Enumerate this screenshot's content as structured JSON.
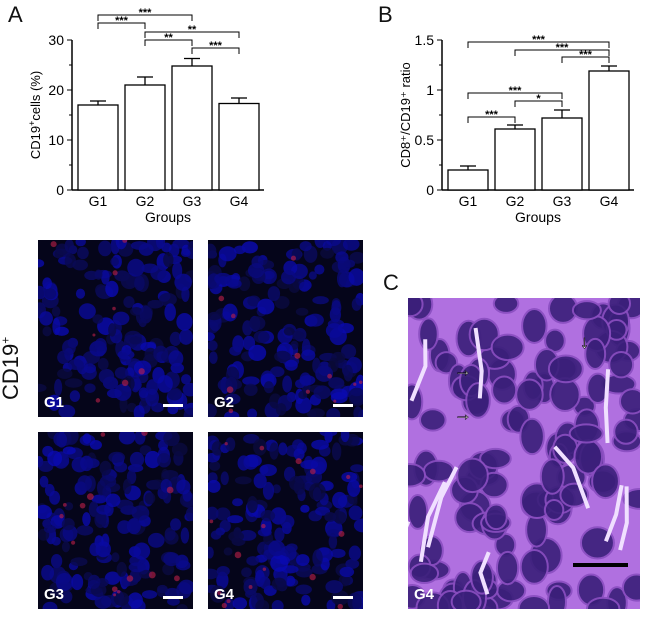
{
  "panels": {
    "a": "A",
    "b": "B",
    "c": "C"
  },
  "chart_data": [
    {
      "type": "bar",
      "ylabel_main": "CD19",
      "ylabel_sup": "+",
      "ylabel_rest": "cells (%)",
      "xlabel": "Groups",
      "categories": [
        "G1",
        "G2",
        "G3",
        "G4"
      ],
      "values": [
        17.0,
        21.0,
        24.8,
        17.3
      ],
      "errors": [
        0.8,
        1.6,
        1.5,
        1.1
      ],
      "ylim": [
        0,
        30
      ],
      "yticks": [
        "0",
        "10",
        "20",
        "30"
      ],
      "significance": [
        {
          "from": "G1",
          "to": "G3",
          "label": "***"
        },
        {
          "from": "G1",
          "to": "G2",
          "label": "***"
        },
        {
          "from": "G2",
          "to": "G4",
          "label": "**"
        },
        {
          "from": "G2",
          "to": "G3",
          "label": "**"
        },
        {
          "from": "G3",
          "to": "G4",
          "label": "***"
        }
      ]
    },
    {
      "type": "bar",
      "ylabel": "CD8⁺/CD19⁺ ratio",
      "xlabel": "Groups",
      "categories": [
        "G1",
        "G2",
        "G3",
        "G4"
      ],
      "values": [
        0.2,
        0.61,
        0.72,
        1.19
      ],
      "errors": [
        0.04,
        0.04,
        0.08,
        0.05
      ],
      "ylim": [
        0,
        1.5
      ],
      "yticks": [
        "0",
        "0.5",
        "1",
        "1.5"
      ],
      "significance": [
        {
          "from": "G1",
          "to": "G4",
          "label": "***"
        },
        {
          "from": "G2",
          "to": "G4",
          "label": "***"
        },
        {
          "from": "G3",
          "to": "G4",
          "label": "***"
        },
        {
          "from": "G1",
          "to": "G3",
          "label": "***"
        },
        {
          "from": "G2",
          "to": "G3",
          "label": "*"
        },
        {
          "from": "G1",
          "to": "G2",
          "label": "***"
        }
      ]
    }
  ],
  "images": {
    "side_label": "CD19",
    "side_label_sup": "+",
    "fluorescence": [
      "G1",
      "G2",
      "G3",
      "G4"
    ],
    "he": "G4"
  },
  "colors": {
    "nuclei": "#1a1aff",
    "cd19": "#c0204a",
    "he_nuclei": "#3a1f7a",
    "he_stroma": "#f0e0ff"
  }
}
